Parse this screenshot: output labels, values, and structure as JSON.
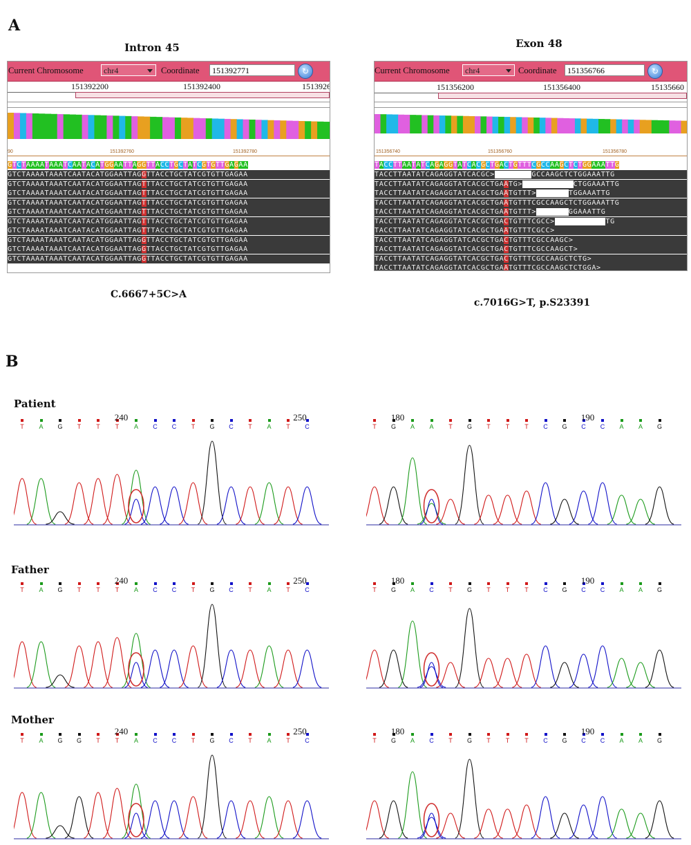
{
  "panel_a": {
    "letter": "A",
    "left": {
      "title": "Intron 45",
      "toolbar": {
        "chrom_label": "Current Chromosome",
        "chrom_value": "chr4",
        "coord_label": "Coordinate",
        "coord_value": "151392771"
      },
      "ruler": [
        "151392200",
        "151392400",
        "1513926"
      ],
      "ticks": [
        "90",
        "151392760",
        "151392780"
      ],
      "reference": "GTCTAAAATAAATCAATACATGGAATTAGGTTACCTGCTATCGTGTTGAGAA",
      "reads": [
        "GTCTAAAATAAATCAATACATGGAATTAGGTTACCTGCTATCGTGTTGAGAA",
        "GTCTAAAATAAATCAATACATGGAATTAGTTTACCTGCTATCGTGTTGAGAA",
        "GTCTAAAATAAATCAATACATGGAATTAGTTTACCTGCTATCGTGTTGAGAA",
        "GTCTAAAATAAATCAATACATGGAATTAGTTTACCTGCTATCGTGTTGAGAA",
        "GTCTAAAATAAATCAATACATGGAATTAGTTTACCTGCTATCGTGTTGAGAA",
        "GTCTAAAATAAATCAATACATGGAATTAGTTTACCTGCTATCGTGTTGAGAA",
        "GTCTAAAATAAATCAATACATGGAATTAGTTTACCTGCTATCGTGTTGAGAA",
        "GTCTAAAATAAATCAATACATGGAATTAGGTTACCTGCTATCGTGTTGAGAA",
        "GTCTAAAATAAATCAATACATGGAATTAGGTTACCTGCTATCGTGTTGAGAA",
        "GTCTAAAATAAATCAATACATGGAATTAGGTTACCTGCTATCGTGTTGAGAA"
      ],
      "caption": "C.6667+5C>A"
    },
    "right": {
      "title": "Exon 48",
      "toolbar": {
        "chrom_label": "Current Chromosome",
        "chrom_value": "chr4",
        "coord_label": "Coordinate",
        "coord_value": "151356766"
      },
      "ruler": [
        "151356200",
        "151356400",
        "15135660"
      ],
      "ticks": [
        "151356740",
        "151356760",
        "151356780"
      ],
      "reference": "TACCTTAATATCAGAGGTATCACGCTGACTGTTTCGCCAAGCTCTGGAAATTG",
      "reads": [
        "TACCTTAATATCAGAGGTATCACGC>        GCCAAGCTCTGGAAATTG",
        "TACCTTAATATCAGAGGTATCACGCTGAATG>           CTGGAAATTG",
        "TACCTTAATATCAGAGGTATCACGCTGAATGTTT>       TGGAAATTG",
        "TACCTTAATATCAGAGGTATCACGCTGAATGTTTCGCCAAGCTCTGGAAATTG",
        "TACCTTAATATCAGAGGTATCACGCTGAATGTTT>       GGAAATTG",
        "TACCTTAATATCAGAGGTATCACGCTGACTGTTTCGCC>           TG",
        "TACCTTAATATCAGAGGTATCACGCTGAATGTTTCGCC>",
        "TACCTTAATATCAGAGGTATCACGCTGACTGTTTCGCCAAGC>",
        "TACCTTAATATCAGAGGTATCACGCTGACTGTTTCGCCAAGCT>",
        "TACCTTAATATCAGAGGTATCACGCTGACTGTTTCGCCAAGCTCTG>",
        "TACCTTAATATCAGAGGTATCACGCTGAATGTTTCGCCAAGCTCTGGA>"
      ],
      "caption": "c.7016G>T, p.S23391"
    }
  },
  "panel_b": {
    "letter": "B",
    "rows": [
      {
        "label": "Patient",
        "left": {
          "bases": [
            "T",
            "A",
            "G",
            "T",
            "T",
            "T",
            "A",
            "C",
            "C",
            "T",
            "G",
            "C",
            "T",
            "A",
            "T",
            "C"
          ],
          "pos": [
            "240",
            "250"
          ]
        },
        "right": {
          "bases": [
            "T",
            "G",
            "A",
            "A",
            "T",
            "G",
            "T",
            "T",
            "T",
            "C",
            "G",
            "C",
            "C",
            "A",
            "A",
            "G"
          ],
          "pos": [
            "180",
            "190"
          ]
        }
      },
      {
        "label": "Father",
        "left": {
          "bases": [
            "T",
            "A",
            "G",
            "T",
            "T",
            "T",
            "A",
            "C",
            "C",
            "T",
            "G",
            "C",
            "T",
            "A",
            "T",
            "C"
          ],
          "pos": [
            "240",
            "250"
          ]
        },
        "right": {
          "bases": [
            "T",
            "G",
            "A",
            "C",
            "T",
            "G",
            "T",
            "T",
            "T",
            "C",
            "G",
            "C",
            "C",
            "A",
            "A",
            "G"
          ],
          "pos": [
            "180",
            "190"
          ]
        }
      },
      {
        "label": "Mother",
        "left": {
          "bases": [
            "T",
            "A",
            "G",
            "G",
            "T",
            "T",
            "A",
            "C",
            "C",
            "T",
            "G",
            "C",
            "T",
            "A",
            "T",
            "C"
          ],
          "pos": [
            "240",
            "250"
          ]
        },
        "right": {
          "bases": [
            "T",
            "G",
            "A",
            "C",
            "T",
            "G",
            "T",
            "T",
            "T",
            "C",
            "G",
            "C",
            "C",
            "A",
            "A",
            "G"
          ],
          "pos": [
            "180",
            "190"
          ]
        }
      }
    ]
  },
  "colors": {
    "A": "#1a9a1a",
    "C": "#1010c8",
    "G": "#111111",
    "T": "#d01818",
    "highlight": "#d03030",
    "toolbar": "#e05577"
  }
}
